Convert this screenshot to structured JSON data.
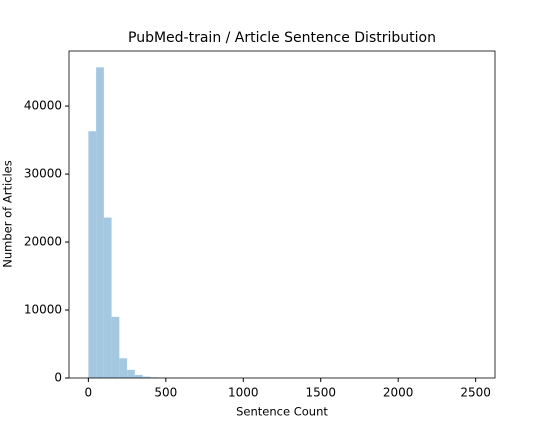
{
  "chart_data": {
    "type": "histogram",
    "title": "PubMed-train / Article Sentence Distribution",
    "x_label": "Sentence Count",
    "y_label": "Number of Articles",
    "color": "#a5c8e1",
    "bins": [
      0,
      50,
      100,
      150,
      200,
      250,
      300,
      350,
      400,
      450,
      500,
      550,
      600,
      650,
      700,
      750,
      800,
      850,
      900,
      950,
      1000,
      1050,
      1100,
      1150,
      1200,
      1250,
      1300,
      1350,
      1400,
      1450,
      1500,
      1550,
      1600,
      1650,
      1700,
      1750,
      1800,
      1850,
      1900,
      1950,
      2000,
      2050,
      2100,
      2150,
      2200,
      2250,
      2300,
      2350,
      2400,
      2450,
      2500
    ],
    "counts": [
      36300,
      45700,
      23600,
      9000,
      2900,
      1200,
      450,
      200,
      100,
      60,
      30,
      20,
      10,
      8,
      5,
      4,
      3,
      2,
      2,
      1,
      1,
      1,
      0,
      0,
      1,
      0,
      0,
      0,
      0,
      0,
      0,
      0,
      0,
      0,
      0,
      0,
      0,
      0,
      0,
      0,
      0,
      0,
      0,
      0,
      0,
      0,
      0,
      0,
      0,
      1
    ],
    "xlim": [
      -125,
      2625
    ],
    "xticks": [
      0,
      500,
      1000,
      1500,
      2000,
      2500
    ],
    "ylim": [
      0,
      48100
    ],
    "yticks": [
      0,
      10000,
      20000,
      30000,
      40000
    ]
  }
}
